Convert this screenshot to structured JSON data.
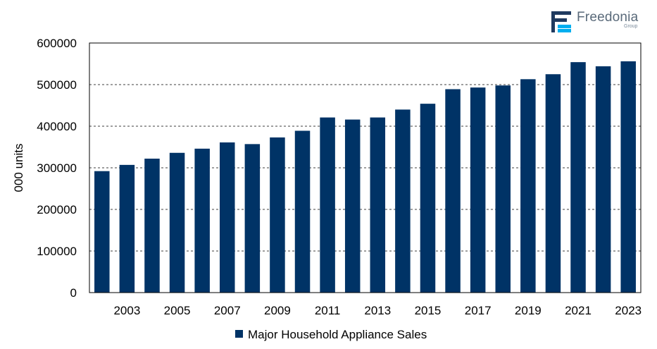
{
  "logo": {
    "name": "Freedonia",
    "sub": "Group",
    "colors": {
      "dark": "#1f3a5f",
      "accent": "#00aeef"
    }
  },
  "chart_data": {
    "type": "bar",
    "title": "",
    "xlabel": "",
    "ylabel": "000 units",
    "ylim": [
      0,
      600000
    ],
    "yticks": [
      0,
      100000,
      200000,
      300000,
      400000,
      500000,
      600000
    ],
    "xtick_labels": [
      "2003",
      "2005",
      "2007",
      "2009",
      "2011",
      "2013",
      "2015",
      "2017",
      "2019",
      "2021",
      "2023"
    ],
    "grid": "horizontal dashed",
    "legend_position": "bottom",
    "bar_color": "#003366",
    "categories": [
      "2002",
      "2003",
      "2004",
      "2005",
      "2006",
      "2007",
      "2008",
      "2009",
      "2010",
      "2011",
      "2012",
      "2013",
      "2014",
      "2015",
      "2016",
      "2017",
      "2018",
      "2019",
      "2020",
      "2021",
      "2022",
      "2023"
    ],
    "series": [
      {
        "name": "Major Household Appliance Sales",
        "values": [
          292000,
          307000,
          322000,
          336000,
          346000,
          361000,
          357000,
          373000,
          389000,
          421000,
          416000,
          421000,
          440000,
          454000,
          489000,
          493000,
          498000,
          513000,
          525000,
          554000,
          544000,
          556000
        ]
      }
    ]
  }
}
